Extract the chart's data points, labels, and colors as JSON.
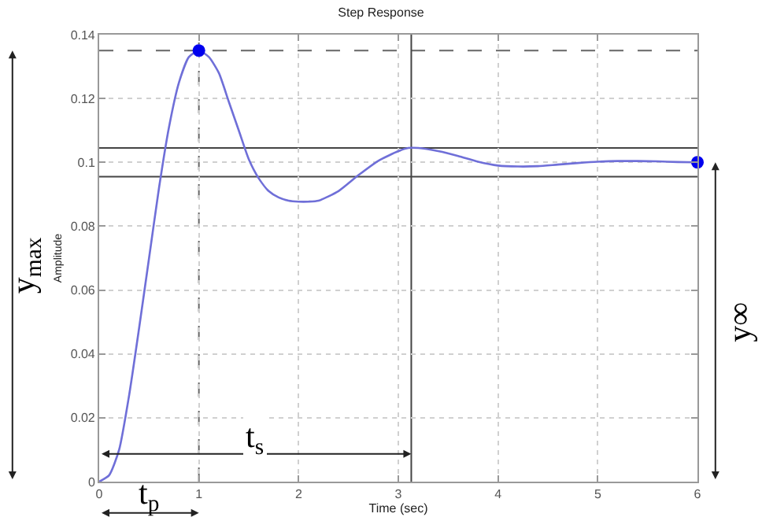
{
  "chart_data": {
    "type": "line",
    "title": "Step Response",
    "xlabel": "Time (sec)",
    "ylabel": "Amplitude",
    "xlim": [
      0,
      6
    ],
    "xticks": [
      0,
      1,
      2,
      3,
      4,
      5,
      6
    ],
    "ylim": [
      0,
      0.14
    ],
    "yticks": [
      0,
      0.02,
      0.04,
      0.06,
      0.08,
      0.1,
      0.12,
      0.14
    ],
    "grid": true,
    "series": [
      {
        "color": "#6f6fd8",
        "marker": "none",
        "line_style": "solid",
        "x": [
          0,
          0.1,
          0.2,
          0.3,
          0.4,
          0.5,
          0.6,
          0.7,
          0.8,
          0.9,
          1.0,
          1.1,
          1.2,
          1.3,
          1.4,
          1.5,
          1.6,
          1.7,
          1.8,
          1.9,
          2.0,
          2.1,
          2.2,
          2.4,
          2.6,
          2.8,
          3.0,
          3.1,
          3.2,
          3.4,
          3.6,
          3.8,
          4.0,
          4.2,
          4.4,
          4.6,
          4.8,
          5.0,
          5.2,
          5.4,
          5.6,
          5.8,
          6.0
        ],
        "values": [
          0,
          0.002,
          0.01,
          0.027,
          0.048,
          0.07,
          0.092,
          0.111,
          0.125,
          0.133,
          0.135,
          0.133,
          0.128,
          0.119,
          0.11,
          0.101,
          0.095,
          0.091,
          0.089,
          0.088,
          0.0877,
          0.0877,
          0.088,
          0.091,
          0.096,
          0.1005,
          0.1035,
          0.1045,
          0.1045,
          0.1035,
          0.102,
          0.1002,
          0.099,
          0.0987,
          0.0988,
          0.0993,
          0.0998,
          0.1002,
          0.1004,
          0.1004,
          0.1003,
          0.1001,
          0.1
        ]
      },
      {
        "type": "scatter",
        "color": "#0000ee",
        "marker": "circle",
        "x": [
          1,
          6
        ],
        "values": [
          0.135,
          0.1
        ]
      }
    ],
    "ref_lines": [
      {
        "axis": "y",
        "value": 0.1045,
        "color": "#444444",
        "line_style": "solid"
      },
      {
        "axis": "y",
        "value": 0.0955,
        "color": "#444444",
        "line_style": "solid"
      },
      {
        "axis": "y",
        "value": 0.135,
        "color": "#666666",
        "line_style": "dashed"
      },
      {
        "axis": "x",
        "value": 1,
        "color": "#666666",
        "line_style": "dashed"
      },
      {
        "axis": "x",
        "value": 3.13,
        "color": "#444444",
        "line_style": "solid"
      }
    ],
    "annotations": [
      "y$_{max}$",
      "y∞",
      "t$_{p}$",
      "t$_{s}$"
    ]
  }
}
